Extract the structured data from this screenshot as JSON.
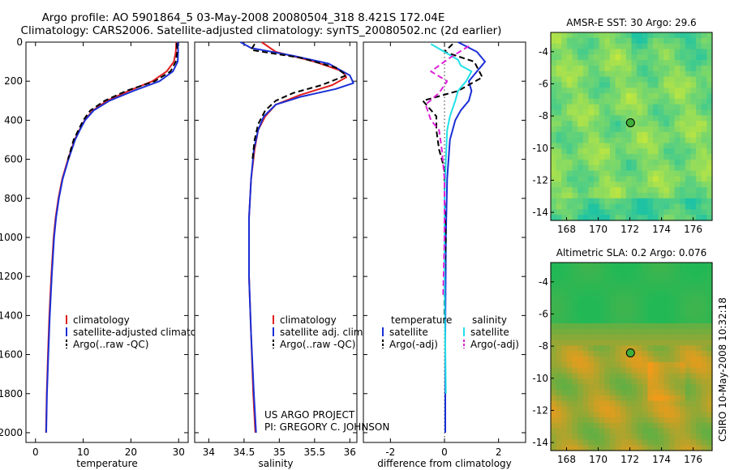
{
  "header": {
    "line1": "Argo profile: AO 5901864_5 03-May-2008 20080504_318 8.421S 172.04E",
    "line2": "Climatology: CARS2006. Satellite-adjusted climatology: synTS_20080502.nc (2d earlier)"
  },
  "credits": {
    "project": "US ARGO PROJECT",
    "pi": "PI: GREGORY C. JOHNSON",
    "side_stamp": "CSIRO 10-May-2008 10:32:18"
  },
  "colors": {
    "climatology": "#e02020",
    "satellite": "#1a2fd6",
    "argo": "#000000",
    "sat_salinity": "#22e0e8",
    "argo_adj_salinity": "#e020d8",
    "map_sst_low": "#1fc3a3",
    "map_sst_high": "#c8e83a",
    "map_sla_low": "#23b856",
    "map_sla_high": "#f59a18"
  },
  "chart_data": [
    {
      "type": "line",
      "title": "",
      "xlabel": "temperature",
      "ylabel": "",
      "xlim": [
        -2,
        32
      ],
      "ylim": [
        2050,
        0
      ],
      "xticks": [
        0,
        10,
        20,
        30
      ],
      "yticks": [
        0,
        200,
        400,
        600,
        800,
        1000,
        1200,
        1400,
        1600,
        1800,
        2000
      ],
      "legend": {
        "placement": "lower-middle",
        "items": [
          {
            "label": "climatology",
            "color": "#e02020",
            "dash": "solid"
          },
          {
            "label": "satellite-adjusted climatology",
            "color": "#1a2fd6",
            "dash": "solid"
          },
          {
            "label": "Argo(..raw -QC)",
            "color": "#000000",
            "dash": "dashed"
          }
        ]
      },
      "series": [
        {
          "name": "climatology",
          "color": "#e02020",
          "dash": "solid",
          "points": [
            [
              29.5,
              0
            ],
            [
              29.4,
              50
            ],
            [
              29.0,
              100
            ],
            [
              27.5,
              150
            ],
            [
              24.5,
              200
            ],
            [
              19.5,
              250
            ],
            [
              15.0,
              300
            ],
            [
              12.0,
              350
            ],
            [
              10.3,
              400
            ],
            [
              9.2,
              450
            ],
            [
              8.2,
              500
            ],
            [
              6.8,
              600
            ],
            [
              5.6,
              700
            ],
            [
              4.8,
              800
            ],
            [
              4.2,
              900
            ],
            [
              3.8,
              1000
            ],
            [
              3.3,
              1200
            ],
            [
              2.9,
              1400
            ],
            [
              2.6,
              1600
            ],
            [
              2.35,
              1800
            ],
            [
              2.2,
              2000
            ]
          ]
        },
        {
          "name": "satellite-adjusted climatology",
          "color": "#1a2fd6",
          "dash": "solid",
          "points": [
            [
              29.8,
              0
            ],
            [
              29.9,
              50
            ],
            [
              29.8,
              100
            ],
            [
              28.8,
              150
            ],
            [
              26.0,
              200
            ],
            [
              20.5,
              250
            ],
            [
              15.5,
              300
            ],
            [
              12.2,
              350
            ],
            [
              10.4,
              400
            ],
            [
              9.3,
              450
            ],
            [
              8.3,
              500
            ],
            [
              6.9,
              600
            ],
            [
              5.7,
              700
            ],
            [
              4.9,
              800
            ],
            [
              4.3,
              900
            ],
            [
              3.9,
              1000
            ],
            [
              3.4,
              1200
            ],
            [
              3.0,
              1400
            ],
            [
              2.7,
              1600
            ],
            [
              2.4,
              1800
            ],
            [
              2.25,
              2000
            ]
          ]
        },
        {
          "name": "Argo(..raw -QC)",
          "color": "#000000",
          "dash": "dashed",
          "points": [
            [
              29.6,
              5
            ],
            [
              29.7,
              50
            ],
            [
              29.4,
              100
            ],
            [
              28.3,
              150
            ],
            [
              25.0,
              200
            ],
            [
              19.0,
              250
            ],
            [
              14.5,
              300
            ],
            [
              11.5,
              350
            ],
            [
              10.0,
              400
            ],
            [
              9.0,
              450
            ],
            [
              8.0,
              500
            ],
            [
              6.8,
              600
            ]
          ]
        }
      ]
    },
    {
      "type": "line",
      "title": "",
      "xlabel": "salinity",
      "ylabel": "",
      "xlim": [
        33.8,
        36.1
      ],
      "ylim": [
        2050,
        0
      ],
      "xticks": [
        34,
        34.5,
        35,
        35.5,
        36
      ],
      "yticks": [
        0,
        200,
        400,
        600,
        800,
        1000,
        1200,
        1400,
        1600,
        1800,
        2000
      ],
      "legend": {
        "placement": "lower-middle",
        "items": [
          {
            "label": "climatology",
            "color": "#e02020",
            "dash": "solid"
          },
          {
            "label": "satellite adj. clim.",
            "color": "#1a2fd6",
            "dash": "solid"
          },
          {
            "label": "Argo(..raw -QC)",
            "color": "#000000",
            "dash": "dashed"
          }
        ]
      },
      "series": [
        {
          "name": "climatology",
          "color": "#e02020",
          "dash": "solid",
          "points": [
            [
              34.75,
              0
            ],
            [
              34.95,
              50
            ],
            [
              35.5,
              100
            ],
            [
              35.9,
              150
            ],
            [
              35.95,
              180
            ],
            [
              35.75,
              220
            ],
            [
              35.3,
              270
            ],
            [
              34.95,
              320
            ],
            [
              34.8,
              380
            ],
            [
              34.7,
              450
            ],
            [
              34.65,
              550
            ],
            [
              34.6,
              700
            ],
            [
              34.57,
              900
            ],
            [
              34.57,
              1200
            ],
            [
              34.6,
              1500
            ],
            [
              34.63,
              1800
            ],
            [
              34.66,
              2000
            ]
          ]
        },
        {
          "name": "satellite adj. clim.",
          "color": "#1a2fd6",
          "dash": "solid",
          "points": [
            [
              34.45,
              0
            ],
            [
              34.6,
              30
            ],
            [
              35.2,
              70
            ],
            [
              35.7,
              110
            ],
            [
              36.0,
              170
            ],
            [
              36.05,
              210
            ],
            [
              35.8,
              240
            ],
            [
              35.3,
              280
            ],
            [
              34.95,
              320
            ],
            [
              34.78,
              380
            ],
            [
              34.7,
              450
            ],
            [
              34.64,
              550
            ],
            [
              34.6,
              700
            ],
            [
              34.57,
              900
            ],
            [
              34.57,
              1200
            ],
            [
              34.6,
              1500
            ],
            [
              34.64,
              1800
            ],
            [
              34.67,
              2000
            ]
          ]
        },
        {
          "name": "Argo(..raw -QC)",
          "color": "#000000",
          "dash": "dashed",
          "points": [
            [
              34.65,
              10
            ],
            [
              34.6,
              40
            ],
            [
              35.3,
              80
            ],
            [
              35.8,
              130
            ],
            [
              35.95,
              170
            ],
            [
              35.6,
              220
            ],
            [
              35.2,
              260
            ],
            [
              34.95,
              300
            ],
            [
              34.8,
              350
            ],
            [
              34.7,
              420
            ],
            [
              34.65,
              500
            ],
            [
              34.62,
              600
            ]
          ]
        }
      ]
    },
    {
      "type": "line",
      "title": "",
      "xlabel": "difference from climatology",
      "ylabel": "",
      "xlim": [
        -3,
        3
      ],
      "ylim": [
        2050,
        0
      ],
      "xticks": [
        -2,
        0,
        2
      ],
      "yticks": [
        0,
        200,
        400,
        600,
        800,
        1000,
        1200,
        1400,
        1600,
        1800,
        2000
      ],
      "legend": {
        "placement": "lower-middle",
        "items": [
          {
            "label": "temperature",
            "group": "temperature",
            "color": "",
            "dash": "none"
          },
          {
            "label": "satellite",
            "group": "temperature",
            "color": "#1a2fd6",
            "dash": "solid"
          },
          {
            "label": "Argo(-adj)",
            "group": "temperature",
            "color": "#000000",
            "dash": "dashed"
          },
          {
            "label": "salinity",
            "group": "salinity",
            "color": "",
            "dash": "none"
          },
          {
            "label": "satellite",
            "group": "salinity",
            "color": "#22e0e8",
            "dash": "solid"
          },
          {
            "label": "Argo(-adj)",
            "group": "salinity",
            "color": "#e020d8",
            "dash": "dashed"
          }
        ]
      },
      "series": [
        {
          "name": "temperature satellite",
          "color": "#1a2fd6",
          "dash": "solid",
          "points": [
            [
              0.5,
              0
            ],
            [
              1.2,
              50
            ],
            [
              1.5,
              100
            ],
            [
              1.2,
              150
            ],
            [
              0.9,
              200
            ],
            [
              1.0,
              250
            ],
            [
              0.9,
              300
            ],
            [
              0.6,
              350
            ],
            [
              0.4,
              400
            ],
            [
              0.2,
              500
            ],
            [
              0.1,
              700
            ],
            [
              0.05,
              1000
            ],
            [
              0.03,
              1500
            ],
            [
              0.03,
              2000
            ]
          ]
        },
        {
          "name": "temperature Argo(-adj)",
          "color": "#000000",
          "dash": "dashed",
          "points": [
            [
              0.3,
              10
            ],
            [
              0.0,
              50
            ],
            [
              1.1,
              100
            ],
            [
              1.4,
              180
            ],
            [
              0.5,
              250
            ],
            [
              -0.8,
              300
            ],
            [
              -0.3,
              380
            ],
            [
              -0.3,
              450
            ],
            [
              -0.2,
              550
            ],
            [
              0.0,
              650
            ],
            [
              0.0,
              800
            ],
            [
              0.05,
              1000
            ],
            [
              0.0,
              1200
            ],
            [
              0.0,
              1400
            ]
          ]
        },
        {
          "name": "salinity satellite",
          "color": "#22e0e8",
          "dash": "solid",
          "points": [
            [
              -0.5,
              10
            ],
            [
              0.0,
              50
            ],
            [
              0.5,
              90
            ],
            [
              0.6,
              120
            ],
            [
              1.0,
              150
            ],
            [
              0.8,
              200
            ],
            [
              0.5,
              250
            ],
            [
              0.4,
              300
            ],
            [
              0.2,
              380
            ],
            [
              0.1,
              450
            ],
            [
              0.05,
              600
            ],
            [
              0.0,
              800
            ],
            [
              0.0,
              1200
            ],
            [
              0.05,
              1800
            ]
          ]
        },
        {
          "name": "salinity Argo(-adj)",
          "color": "#e020d8",
          "dash": "dashed",
          "points": [
            [
              0.9,
              20
            ],
            [
              0.2,
              80
            ],
            [
              -0.5,
              150
            ],
            [
              0.1,
              200
            ],
            [
              -0.2,
              260
            ],
            [
              -0.7,
              320
            ],
            [
              -0.5,
              400
            ],
            [
              -0.2,
              450
            ],
            [
              -0.1,
              550
            ],
            [
              0.0,
              700
            ],
            [
              0.0,
              1000
            ],
            [
              -0.05,
              1300
            ]
          ]
        }
      ]
    },
    {
      "type": "heatmap",
      "title": "AMSR-E SST: 30 Argo: 29.6",
      "xlabel": "",
      "ylabel": "",
      "xlim": [
        167,
        177.2
      ],
      "ylim": [
        -14.5,
        -2.8
      ],
      "xticks": [
        168,
        170,
        172,
        174,
        176
      ],
      "yticks": [
        -4,
        -6,
        -8,
        -10,
        -12,
        -14
      ],
      "field_range": [
        29.4,
        30.2
      ],
      "profile_location": {
        "lon": 172.04,
        "lat": -8.421
      }
    },
    {
      "type": "heatmap",
      "title": "Altimetric SLA: 0.2 Argo: 0.076",
      "xlabel": "",
      "ylabel": "",
      "xlim": [
        167,
        177.2
      ],
      "ylim": [
        -14.5,
        -2.8
      ],
      "xticks": [
        168,
        170,
        172,
        174,
        176
      ],
      "yticks": [
        -4,
        -6,
        -8,
        -10,
        -12,
        -14
      ],
      "field_range": [
        0.05,
        0.3
      ],
      "profile_location": {
        "lon": 172.04,
        "lat": -8.421
      }
    }
  ]
}
